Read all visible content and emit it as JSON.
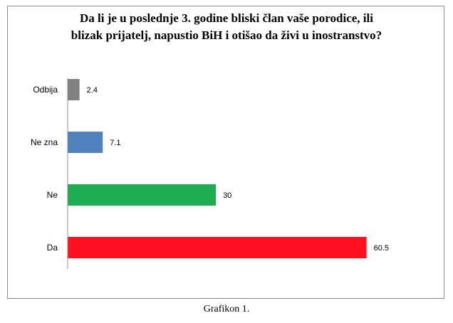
{
  "chart_data": {
    "type": "bar",
    "orientation": "horizontal",
    "title_lines": [
      "Da li je u poslednje 3. godine bliski član vaše porodice, ili",
      "blizak prijatelj, napustio BiH i otišao da živi u inostranstvo?"
    ],
    "categories": [
      "Odbija",
      "Ne zna",
      "Ne",
      "Da"
    ],
    "values": [
      2.4,
      7.1,
      30,
      60.5
    ],
    "value_labels": [
      "2.4",
      "7.1",
      "30",
      "60.5"
    ],
    "colors": [
      "#808080",
      "#4f81bd",
      "#1fad52",
      "#ff101f"
    ],
    "xlim": [
      0,
      62
    ],
    "grid": false,
    "legend": "none"
  },
  "caption": "Grafikon  1."
}
